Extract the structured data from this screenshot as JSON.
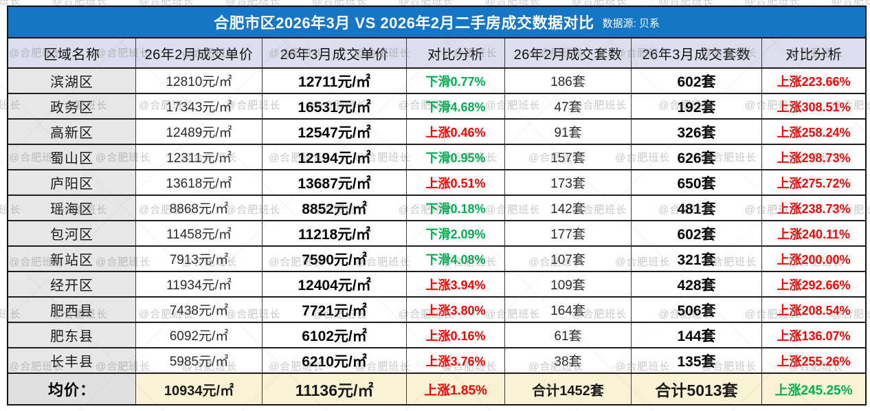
{
  "title": {
    "main": "合肥市区2026年3月 VS 2026年2月二手房成交数据对比",
    "source": "数据源: 贝系"
  },
  "watermark": {
    "text": "@合肥班长"
  },
  "colors": {
    "title_bar_blue": "#1576C6",
    "header_bg": "#DBDEEC",
    "district_col_bg": "#E7E7E7",
    "footer_bg": "#FBF2D5",
    "footer_label_bg": "#E0E0E0",
    "rise_red": "#FF0000",
    "drop_green": "#00B050"
  },
  "chart_data": {
    "type": "table",
    "title": "合肥市区2026年3月 VS 2026年2月二手房成交数据对比",
    "source": "数据源: 贝系",
    "columns": [
      "区域名称",
      "26年2月成交单价",
      "26年3月成交单价",
      "对比分析",
      "26年2月成交套数",
      "26年3月成交套数",
      "对比分析"
    ],
    "rows": [
      {
        "district": "滨湖区",
        "feb_price": "12810元/㎡",
        "mar_price": "12711元/㎡",
        "price_change": "下滑0.77%",
        "price_change_color": "green",
        "feb_units": "186套",
        "mar_units": "602套",
        "units_change": "上涨223.66%",
        "units_change_color": "red"
      },
      {
        "district": "政务区",
        "feb_price": "17343元/㎡",
        "mar_price": "16531元/㎡",
        "price_change": "下滑4.68%",
        "price_change_color": "green",
        "feb_units": "47套",
        "mar_units": "192套",
        "units_change": "上涨308.51%",
        "units_change_color": "red"
      },
      {
        "district": "高新区",
        "feb_price": "12489元/㎡",
        "mar_price": "12547元/㎡",
        "price_change": "上涨0.46%",
        "price_change_color": "red",
        "feb_units": "91套",
        "mar_units": "326套",
        "units_change": "上涨258.24%",
        "units_change_color": "red"
      },
      {
        "district": "蜀山区",
        "feb_price": "12311元/㎡",
        "mar_price": "12194元/㎡",
        "price_change": "下滑0.95%",
        "price_change_color": "green",
        "feb_units": "157套",
        "mar_units": "626套",
        "units_change": "上涨298.73%",
        "units_change_color": "red"
      },
      {
        "district": "庐阳区",
        "feb_price": "13618元/㎡",
        "mar_price": "13687元/㎡",
        "price_change": "上涨0.51%",
        "price_change_color": "red",
        "feb_units": "173套",
        "mar_units": "650套",
        "units_change": "上涨275.72%",
        "units_change_color": "red"
      },
      {
        "district": "瑶海区",
        "feb_price": "8868元/㎡",
        "mar_price": "8852元/㎡",
        "price_change": "下滑0.18%",
        "price_change_color": "green",
        "feb_units": "142套",
        "mar_units": "481套",
        "units_change": "上涨238.73%",
        "units_change_color": "red"
      },
      {
        "district": "包河区",
        "feb_price": "11458元/㎡",
        "mar_price": "11218元/㎡",
        "price_change": "下滑2.09%",
        "price_change_color": "green",
        "feb_units": "177套",
        "mar_units": "602套",
        "units_change": "上涨240.11%",
        "units_change_color": "red"
      },
      {
        "district": "新站区",
        "feb_price": "7913元/㎡",
        "mar_price": "7590元/㎡",
        "price_change": "下滑4.08%",
        "price_change_color": "green",
        "feb_units": "107套",
        "mar_units": "321套",
        "units_change": "上涨200.00%",
        "units_change_color": "red"
      },
      {
        "district": "经开区",
        "feb_price": "11934元/㎡",
        "mar_price": "12404元/㎡",
        "price_change": "上涨3.94%",
        "price_change_color": "red",
        "feb_units": "109套",
        "mar_units": "428套",
        "units_change": "上涨292.66%",
        "units_change_color": "red"
      },
      {
        "district": "肥西县",
        "feb_price": "7438元/㎡",
        "mar_price": "7721元/㎡",
        "price_change": "上涨3.80%",
        "price_change_color": "red",
        "feb_units": "164套",
        "mar_units": "506套",
        "units_change": "上涨208.54%",
        "units_change_color": "red"
      },
      {
        "district": "肥东县",
        "feb_price": "6092元/㎡",
        "mar_price": "6102元/㎡",
        "price_change": "上涨0.16%",
        "price_change_color": "red",
        "feb_units": "61套",
        "mar_units": "144套",
        "units_change": "上涨136.07%",
        "units_change_color": "red"
      },
      {
        "district": "长丰县",
        "feb_price": "5985元/㎡",
        "mar_price": "6210元/㎡",
        "price_change": "上涨3.76%",
        "price_change_color": "red",
        "feb_units": "38套",
        "mar_units": "135套",
        "units_change": "上涨255.26%",
        "units_change_color": "red"
      }
    ],
    "footer": {
      "label": "均价：",
      "feb_price": "10934元/㎡",
      "mar_price": "11136元/㎡",
      "price_change": "上涨1.85%",
      "price_change_color": "red",
      "feb_units": "合计1452套",
      "mar_units": "合计5013套",
      "units_change": "上涨245.25%",
      "units_change_color": "green"
    }
  }
}
